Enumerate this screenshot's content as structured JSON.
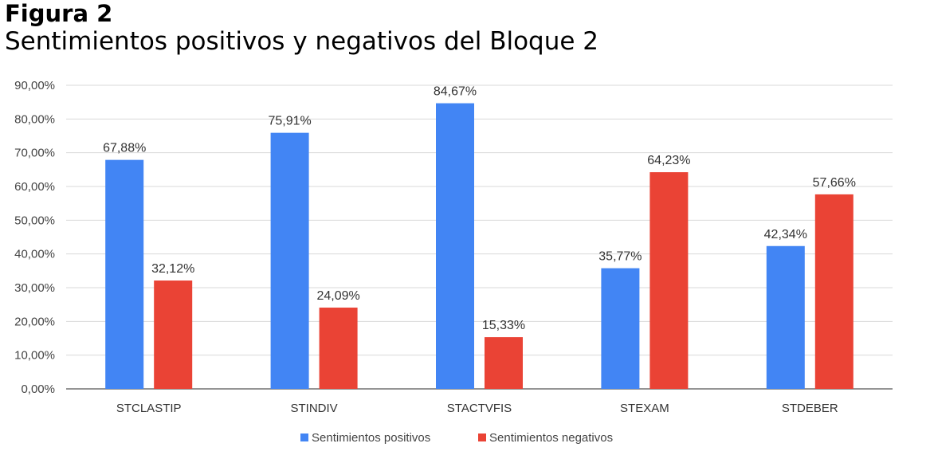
{
  "figure_label": "Figura 2",
  "chart_data": {
    "type": "bar",
    "title": "Sentimientos positivos y negativos del Bloque 2",
    "categories": [
      "STCLASTIP",
      "STINDIV",
      "STACTVFIS",
      "STEXAM",
      "STDEBER"
    ],
    "series": [
      {
        "name": "Sentimientos positivos",
        "color": "#4285f4",
        "values": [
          67.88,
          75.91,
          84.67,
          35.77,
          42.34
        ],
        "labels": [
          "67,88%",
          "75,91%",
          "84,67%",
          "35,77%",
          "42,34%"
        ]
      },
      {
        "name": "Sentimientos negativos",
        "color": "#ea4335",
        "values": [
          32.12,
          24.09,
          15.33,
          64.23,
          57.66
        ],
        "labels": [
          "32,12%",
          "24,09%",
          "15,33%",
          "64,23%",
          "57,66%"
        ]
      }
    ],
    "ylim": [
      0,
      90
    ],
    "yticks": [
      0,
      10,
      20,
      30,
      40,
      50,
      60,
      70,
      80,
      90
    ],
    "ytick_labels": [
      "0,00%",
      "10,00%",
      "20,00%",
      "30,00%",
      "40,00%",
      "50,00%",
      "60,00%",
      "70,00%",
      "80,00%",
      "90,00%"
    ],
    "grid": true,
    "legend_position": "bottom"
  }
}
